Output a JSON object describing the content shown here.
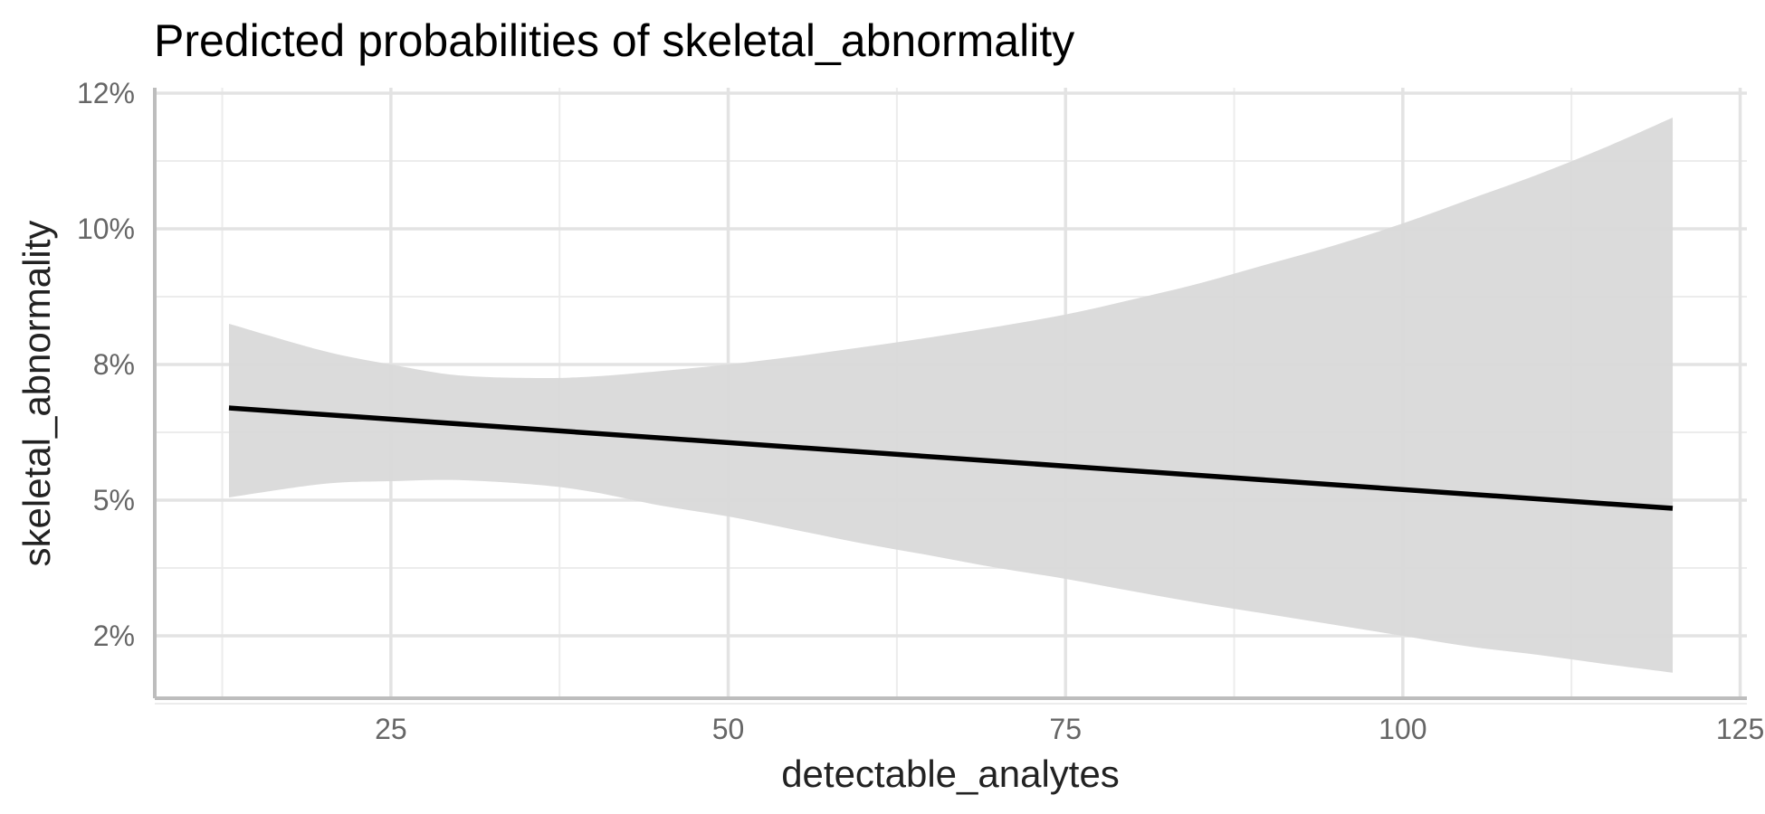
{
  "chart_data": {
    "type": "line",
    "title": "Predicted probabilities of skeletal_abnormality",
    "xlabel": "detectable_analytes",
    "ylabel": "skeletal_abnormality",
    "xlim": [
      7.5,
      125.5
    ],
    "ylim": [
      1.35,
      12.6
    ],
    "x_ticks": [
      25,
      50,
      75,
      100,
      125
    ],
    "x_tick_labels": [
      "25",
      "50",
      "75",
      "100",
      "125"
    ],
    "y_ticks": [
      2.5,
      5,
      7.5,
      10,
      12.5
    ],
    "y_tick_labels": [
      "2%",
      "5%",
      "8%",
      "10%",
      "12%"
    ],
    "x_minor_ticks": [
      12.5,
      37.5,
      62.5,
      87.5,
      112.5
    ],
    "y_minor_ticks": [
      1.25,
      3.75,
      6.25,
      8.75,
      11.25
    ],
    "grid": true,
    "legend": "none",
    "colors": {
      "line": "#000000",
      "ribbon": "#d9d9d9"
    },
    "series": [
      {
        "x": [
          13,
          120
        ],
        "y": [
          6.7,
          4.85
        ]
      }
    ],
    "confidence_band": {
      "x": [
        13,
        20,
        25,
        30,
        36,
        40,
        45,
        50,
        55,
        60,
        65,
        70,
        75,
        80,
        85,
        90,
        95,
        100,
        105,
        110,
        115,
        120
      ],
      "lower": [
        5.05,
        5.3,
        5.35,
        5.37,
        5.28,
        5.15,
        4.9,
        4.7,
        4.45,
        4.2,
        3.98,
        3.75,
        3.55,
        3.32,
        3.1,
        2.9,
        2.7,
        2.5,
        2.3,
        2.15,
        1.98,
        1.82
      ],
      "upper": [
        8.25,
        7.75,
        7.5,
        7.3,
        7.25,
        7.28,
        7.38,
        7.5,
        7.65,
        7.82,
        8.0,
        8.2,
        8.42,
        8.7,
        9.0,
        9.35,
        9.7,
        10.1,
        10.55,
        11.0,
        11.5,
        12.05
      ]
    }
  }
}
